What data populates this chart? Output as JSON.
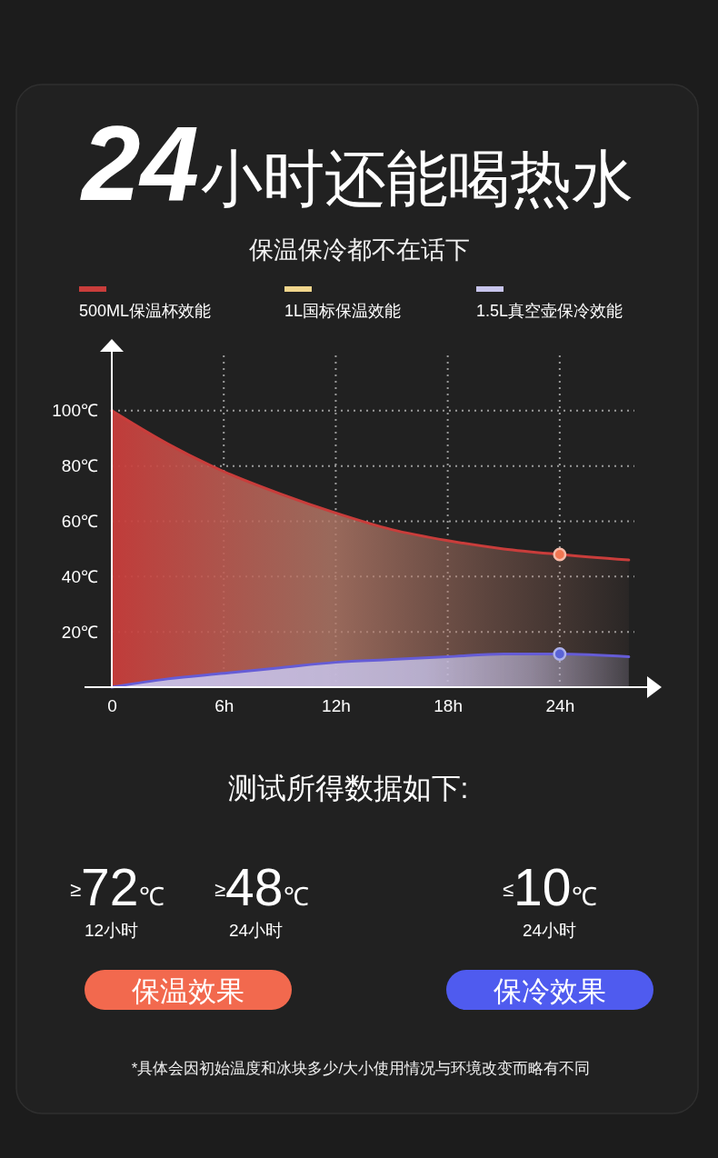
{
  "chart_data": {
    "type": "area",
    "title": "24小时还能喝热水",
    "subtitle": "保温保冷都不在话下",
    "x": [
      0,
      3,
      6,
      9,
      12,
      15,
      18,
      21,
      24,
      27.7
    ],
    "series": [
      {
        "name": "500ML保温杯效能",
        "color": "#c93d3b",
        "values": [
          100,
          88,
          78,
          70,
          63,
          57,
          53,
          50,
          48,
          46
        ]
      },
      {
        "name": "1L国标保温效能",
        "color": "#f0d58c",
        "values": [
          null,
          null,
          null,
          null,
          null,
          null,
          null,
          null,
          null,
          null
        ]
      },
      {
        "name": "1.5L真空壶保冷效能",
        "color": "#c7c4ec",
        "values": [
          0,
          3,
          5,
          7,
          9,
          10,
          11,
          12,
          12,
          11
        ]
      },
      {
        "type": "scatter",
        "x": [
          24
        ],
        "values": [
          48
        ],
        "color": "#f07652",
        "marker": "circle"
      },
      {
        "type": "scatter",
        "x": [
          24
        ],
        "values": [
          12
        ],
        "color": "#5a63d6",
        "marker": "circle"
      }
    ],
    "xlim": [
      0,
      28
    ],
    "xticks": [
      0,
      {
        "value": 6,
        "label": "6h"
      },
      {
        "value": 12,
        "label": "12h"
      },
      {
        "value": 18,
        "label": "18h"
      },
      {
        "value": 24,
        "label": "24h"
      }
    ],
    "ylim": [
      0,
      120
    ],
    "yticks": [
      {
        "value": 20,
        "label": "20℃"
      },
      {
        "value": 40,
        "label": "40℃"
      },
      {
        "value": 60,
        "label": "60℃"
      },
      {
        "value": 80,
        "label": "80℃"
      },
      {
        "value": 100,
        "label": "100℃"
      }
    ],
    "grid": true,
    "legend": "top",
    "annotations": [
      "测试所得数据如下:",
      "≥72℃",
      "≥48℃",
      "≤10℃",
      "12小时",
      "24小时",
      "24小时",
      "保温效果",
      "保冷效果",
      "*具体会因初始温度和冰块多少/大小使用情况与环境改变而略有不同"
    ]
  }
}
